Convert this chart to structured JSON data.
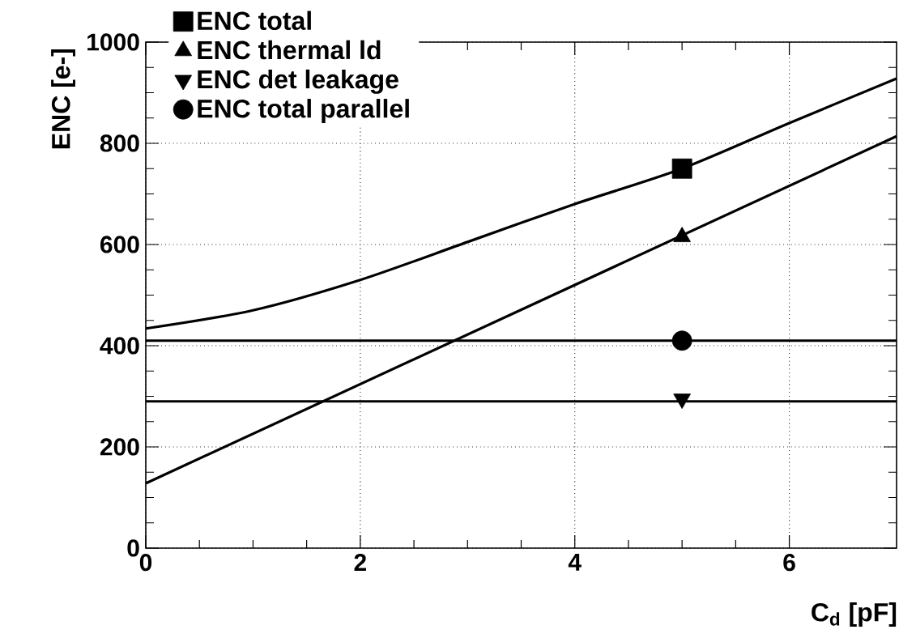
{
  "chart_data": {
    "type": "line",
    "xlabel": "C$_{d}$ [pF]",
    "ylabel": "ENC [e-]",
    "xlim": [
      0,
      7
    ],
    "ylim": [
      0,
      1000
    ],
    "xticks": [
      0,
      2,
      4,
      6
    ],
    "yticks": [
      0,
      200,
      400,
      600,
      800,
      1000
    ],
    "grid": true,
    "legend": "top left",
    "line_style": "solid",
    "series": [
      {
        "color": "#000000",
        "x": [
          0,
          1,
          2,
          3,
          4,
          5,
          6,
          7
        ],
        "values": [
          434,
          470,
          530,
          605,
          680,
          750,
          840,
          928
        ]
      },
      {
        "color": "#000000",
        "x": [
          0,
          7
        ],
        "values": [
          128,
          814
        ]
      },
      {
        "color": "#000000",
        "x": [
          0,
          7
        ],
        "values": [
          290,
          290
        ]
      },
      {
        "color": "#000000",
        "x": [
          0,
          7
        ],
        "values": [
          410,
          410
        ]
      },
      {
        "type": "scatter",
        "name": "ENC total",
        "marker": "square",
        "color": "#000000",
        "x": [
          5
        ],
        "values": [
          750
        ]
      },
      {
        "type": "scatter",
        "name": "ENC thermal ld",
        "marker": "triangle",
        "color": "#000000",
        "x": [
          5
        ],
        "values": [
          615
        ]
      },
      {
        "type": "scatter",
        "name": "ENC det leakage",
        "marker": "triangle-down",
        "color": "#000000",
        "x": [
          5
        ],
        "values": [
          295
        ]
      },
      {
        "type": "scatter",
        "name": "ENC total parallel",
        "marker": "circle",
        "color": "#000000",
        "x": [
          5
        ],
        "values": [
          410
        ]
      }
    ]
  }
}
